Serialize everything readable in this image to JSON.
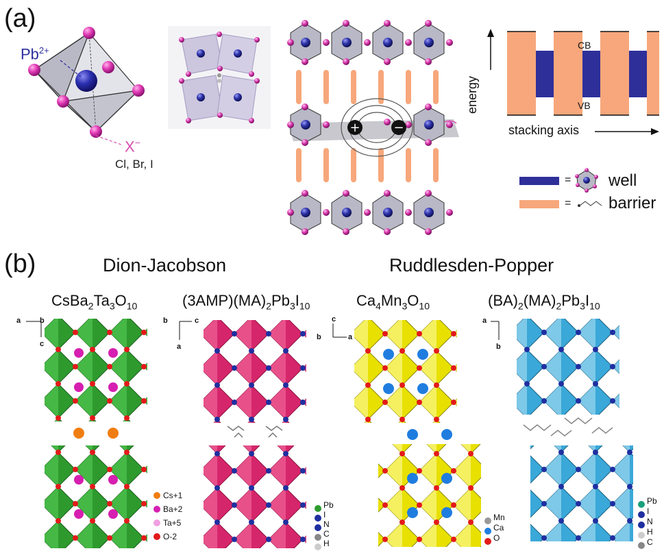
{
  "panel_a": {
    "label": "(a)",
    "pb_label": "Pb",
    "pb_charge": "2+",
    "x_label": "X",
    "x_charge": "−",
    "halides": "Cl, Br, I",
    "band_top": "CB",
    "band_bottom": "VB",
    "energy_axis": "energy",
    "stacking_axis": "stacking axis",
    "legend_eq": "=",
    "legend_well": "well",
    "legend_barrier": "barrier",
    "colors": {
      "well": "#2f2f9a",
      "barrier": "#f7a77b",
      "pb": "#2b2f9e",
      "halide": "#d84fb0"
    }
  },
  "panel_b": {
    "label": "(b)",
    "dj_title": "Dion-Jacobson",
    "rp_title": "Ruddlesden-Popper",
    "structures": [
      {
        "formula_parts": [
          "CsBa",
          "2",
          "Ta",
          "3",
          "O",
          "10"
        ],
        "legend": [
          "Cs+1",
          "Ba+2",
          "Ta+5",
          "O-2"
        ],
        "axes": [
          "a",
          "b",
          "c"
        ]
      },
      {
        "formula_parts": [
          "(3AMP)(MA)",
          "2",
          "Pb",
          "3",
          "I",
          "10"
        ],
        "legend": [
          "Pb",
          "I",
          "N",
          "C",
          "H"
        ],
        "axes": [
          "b",
          "c",
          "a"
        ]
      },
      {
        "formula_parts": [
          "Ca",
          "4",
          "Mn",
          "3",
          "O",
          "10"
        ],
        "legend": [
          "Mn",
          "Ca",
          "O"
        ],
        "axes": [
          "c",
          "b",
          "a"
        ]
      },
      {
        "formula_parts": [
          "(BA)",
          "2",
          "(MA)",
          "2",
          "Pb",
          "3",
          "I",
          "10"
        ],
        "legend": [
          "Pb",
          "I",
          "N",
          "H",
          "C"
        ],
        "axes": [
          "a",
          "b"
        ]
      }
    ],
    "colors": {
      "dj1": "#2e9a2e",
      "dj2": "#d6266b",
      "rp1": "#e8e000",
      "rp2": "#3aa8d8",
      "oxygen": "#e31a1a",
      "iodide": "#1f2fa0"
    }
  }
}
